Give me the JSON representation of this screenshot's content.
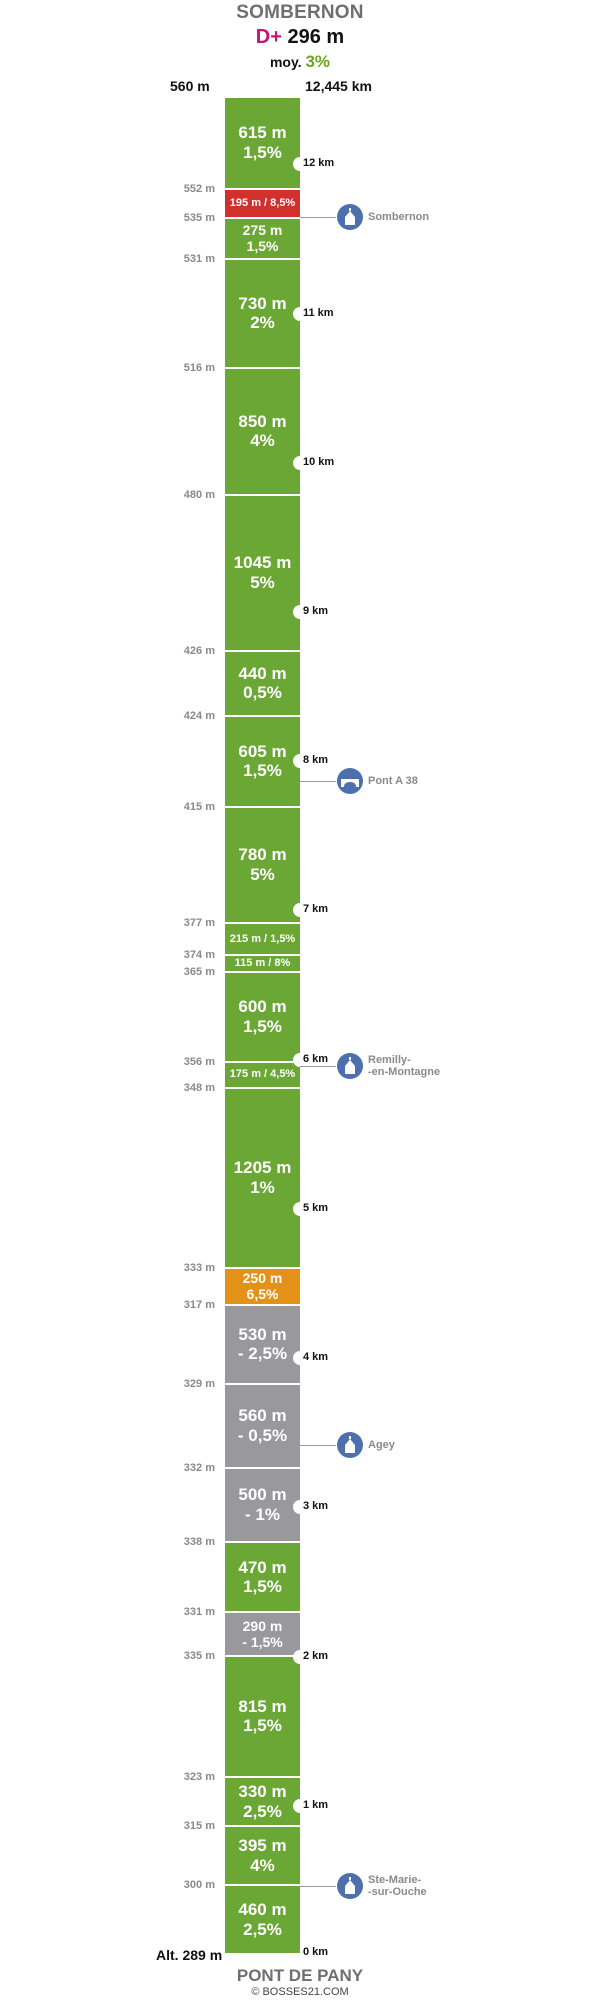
{
  "header": {
    "summit": "SOMBERNON",
    "gain_prefix": "D+",
    "gain_value": "296 m",
    "avg_prefix": "moy.",
    "avg_value": "3%",
    "top_altitude": "560 m",
    "total_distance": "12,445 km"
  },
  "footer": {
    "base_altitude": "Alt. 289 m",
    "base_name": "PONT DE PANY",
    "credit": "© BOSSES21.COM"
  },
  "colors": {
    "climb": "#6aa735",
    "steep": "#d2302c",
    "moderate": "#e39117",
    "descent": "#98989d",
    "title": "#6f6f73",
    "gain_accent": "#c2147a",
    "avg_accent": "#6aa51f",
    "poi": "#4d6fae"
  },
  "chart_data": {
    "type": "climb-profile-strip",
    "total_km": 12.445,
    "start_altitude_m": 289,
    "summit_altitude_m": 560,
    "segments_top_to_bottom": [
      {
        "length_m": 615,
        "grade": "1,5%",
        "line1": "615 m",
        "line2": "1,5%",
        "color": "climb",
        "style": "big",
        "alt_below": "552 m"
      },
      {
        "length_m": 195,
        "grade": "8,5%",
        "line1": "195 m / 8,5%",
        "line2": "",
        "color": "steep",
        "style": "small",
        "alt_below": "535 m"
      },
      {
        "length_m": 275,
        "grade": "1,5%",
        "line1": "275 m",
        "line2": "1,5%",
        "color": "climb",
        "style": "mid",
        "alt_below": "531 m"
      },
      {
        "length_m": 730,
        "grade": "2%",
        "line1": "730 m",
        "line2": "2%",
        "color": "climb",
        "style": "big",
        "alt_below": "516 m"
      },
      {
        "length_m": 850,
        "grade": "4%",
        "line1": "850 m",
        "line2": "4%",
        "color": "climb",
        "style": "big",
        "alt_below": "480 m"
      },
      {
        "length_m": 1045,
        "grade": "5%",
        "line1": "1045 m",
        "line2": "5%",
        "color": "climb",
        "style": "big",
        "alt_below": "426 m"
      },
      {
        "length_m": 440,
        "grade": "0,5%",
        "line1": "440 m",
        "line2": "0,5%",
        "color": "climb",
        "style": "big",
        "alt_below": "424 m"
      },
      {
        "length_m": 605,
        "grade": "1,5%",
        "line1": "605 m",
        "line2": "1,5%",
        "color": "climb",
        "style": "big",
        "alt_below": "415 m"
      },
      {
        "length_m": 780,
        "grade": "5%",
        "line1": "780 m",
        "line2": "5%",
        "color": "climb",
        "style": "big",
        "alt_below": "377 m"
      },
      {
        "length_m": 215,
        "grade": "1,5%",
        "line1": "215 m / 1,5%",
        "line2": "",
        "color": "climb",
        "style": "small",
        "alt_below": "374 m"
      },
      {
        "length_m": 115,
        "grade": "8%",
        "line1": "115 m / 8%",
        "line2": "",
        "color": "climb",
        "style": "small",
        "alt_below": "365 m"
      },
      {
        "length_m": 600,
        "grade": "1,5%",
        "line1": "600 m",
        "line2": "1,5%",
        "color": "climb",
        "style": "big",
        "alt_below": "356 m"
      },
      {
        "length_m": 175,
        "grade": "4,5%",
        "line1": "175 m / 4,5%",
        "line2": "",
        "color": "climb",
        "style": "small",
        "alt_below": "348 m"
      },
      {
        "length_m": 1205,
        "grade": "1%",
        "line1": "1205 m",
        "line2": "1%",
        "color": "climb",
        "style": "big",
        "alt_below": "333 m"
      },
      {
        "length_m": 250,
        "grade": "6,5%",
        "line1": "250 m",
        "line2": "6,5%",
        "color": "moderate",
        "style": "mid",
        "alt_below": "317 m"
      },
      {
        "length_m": 530,
        "grade": "- 2,5%",
        "line1": "530 m",
        "line2": "- 2,5%",
        "color": "descent",
        "style": "big",
        "alt_below": "329 m"
      },
      {
        "length_m": 560,
        "grade": "- 0,5%",
        "line1": "560 m",
        "line2": "- 0,5%",
        "color": "descent",
        "style": "big",
        "alt_below": "332 m"
      },
      {
        "length_m": 500,
        "grade": "- 1%",
        "line1": "500 m",
        "line2": "- 1%",
        "color": "descent",
        "style": "big",
        "alt_below": "338 m"
      },
      {
        "length_m": 470,
        "grade": "1,5%",
        "line1": "470 m",
        "line2": "1,5%",
        "color": "climb",
        "style": "big",
        "alt_below": "331 m"
      },
      {
        "length_m": 290,
        "grade": "- 1,5%",
        "line1": "290 m",
        "line2": "- 1,5%",
        "color": "descent",
        "style": "mid",
        "alt_below": "335 m"
      },
      {
        "length_m": 815,
        "grade": "1,5%",
        "line1": "815 m",
        "line2": "1,5%",
        "color": "climb",
        "style": "big",
        "alt_below": "323 m"
      },
      {
        "length_m": 330,
        "grade": "2,5%",
        "line1": "330 m",
        "line2": "2,5%",
        "color": "climb",
        "style": "big",
        "alt_below": "315 m"
      },
      {
        "length_m": 395,
        "grade": "4%",
        "line1": "395 m",
        "line2": "4%",
        "color": "climb",
        "style": "big",
        "alt_below": "300 m"
      },
      {
        "length_m": 460,
        "grade": "2,5%",
        "line1": "460 m",
        "line2": "2,5%",
        "color": "climb",
        "style": "big",
        "alt_below": ""
      }
    ],
    "km_markers": [
      {
        "km": 12,
        "label": "12 km"
      },
      {
        "km": 11,
        "label": "11 km"
      },
      {
        "km": 10,
        "label": "10 km"
      },
      {
        "km": 9,
        "label": "9 km"
      },
      {
        "km": 8,
        "label": "8 km"
      },
      {
        "km": 7,
        "label": "7 km"
      },
      {
        "km": 6,
        "label": "6 km"
      },
      {
        "km": 5,
        "label": "5 km"
      },
      {
        "km": 4,
        "label": "4 km"
      },
      {
        "km": 3,
        "label": "3 km"
      },
      {
        "km": 2,
        "label": "2 km"
      },
      {
        "km": 1,
        "label": "1 km"
      },
      {
        "km": 0,
        "label": "0 km"
      }
    ],
    "points_of_interest": [
      {
        "km": 11.65,
        "name_lines": [
          "Sombernon"
        ],
        "icon": "church-icon"
      },
      {
        "km": 7.87,
        "name_lines": [
          "Pont A 38"
        ],
        "icon": "bridge-icon"
      },
      {
        "km": 5.96,
        "name_lines": [
          "Remilly-",
          "-en-Montagne"
        ],
        "icon": "church-icon"
      },
      {
        "km": 3.42,
        "name_lines": [
          "Agey"
        ],
        "icon": "church-icon"
      },
      {
        "km": 0.46,
        "name_lines": [
          "Ste-Marie-",
          "-sur-Ouche"
        ],
        "icon": "church-icon"
      }
    ]
  }
}
